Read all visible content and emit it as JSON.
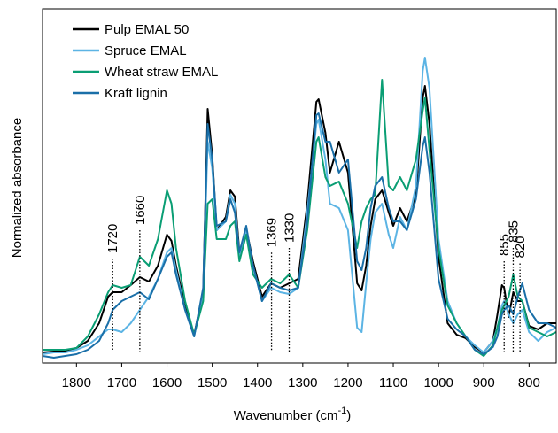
{
  "chart_data": {
    "type": "line",
    "x_label": "Wavenumber (cm",
    "x_label_sup": "-1",
    "x_label_end": ")",
    "y_label": "Normalized absorbance",
    "x": [
      1875,
      1850,
      1825,
      1800,
      1775,
      1750,
      1730,
      1720,
      1700,
      1680,
      1660,
      1640,
      1620,
      1600,
      1590,
      1580,
      1560,
      1540,
      1520,
      1510,
      1500,
      1490,
      1470,
      1460,
      1450,
      1440,
      1425,
      1410,
      1390,
      1370,
      1350,
      1330,
      1310,
      1290,
      1270,
      1265,
      1250,
      1240,
      1220,
      1200,
      1180,
      1170,
      1160,
      1150,
      1140,
      1125,
      1110,
      1100,
      1085,
      1070,
      1050,
      1035,
      1030,
      1020,
      1000,
      980,
      960,
      940,
      920,
      900,
      880,
      870,
      860,
      855,
      845,
      835,
      825,
      815,
      800,
      780,
      760,
      740
    ],
    "series": [
      {
        "name": "Pulp EMAL 50",
        "color": "#000000",
        "values": [
          12,
          13,
          14,
          17,
          25,
          45,
          75,
          80,
          80,
          88,
          97,
          92,
          110,
          145,
          138,
          110,
          65,
          32,
          80,
          287,
          235,
          150,
          165,
          195,
          188,
          125,
          152,
          115,
          75,
          90,
          85,
          90,
          95,
          180,
          295,
          298,
          260,
          215,
          250,
          215,
          90,
          82,
          110,
          155,
          185,
          195,
          170,
          155,
          175,
          160,
          190,
          300,
          313,
          270,
          120,
          45,
          32,
          28,
          18,
          12,
          25,
          55,
          88,
          85,
          52,
          80,
          70,
          70,
          42,
          38,
          45,
          45
        ]
      },
      {
        "name": "Spruce EMAL",
        "color": "#5cb4e4",
        "values": [
          10,
          12,
          12,
          15,
          20,
          30,
          38,
          38,
          35,
          45,
          60,
          75,
          95,
          125,
          130,
          105,
          60,
          30,
          80,
          250,
          220,
          150,
          160,
          190,
          180,
          120,
          150,
          110,
          70,
          85,
          80,
          78,
          85,
          170,
          270,
          275,
          230,
          180,
          175,
          150,
          40,
          35,
          90,
          140,
          170,
          180,
          145,
          130,
          165,
          150,
          200,
          330,
          345,
          310,
          140,
          70,
          45,
          30,
          20,
          12,
          25,
          40,
          65,
          70,
          55,
          45,
          55,
          60,
          35,
          25,
          35,
          40
        ]
      },
      {
        "name": "Wheat straw EMAL",
        "color": "#0a9e74",
        "values": [
          15,
          15,
          15,
          17,
          30,
          55,
          80,
          88,
          85,
          88,
          120,
          110,
          140,
          195,
          180,
          130,
          70,
          32,
          70,
          180,
          185,
          140,
          140,
          155,
          160,
          115,
          145,
          100,
          85,
          95,
          90,
          100,
          85,
          150,
          250,
          255,
          210,
          200,
          205,
          180,
          130,
          160,
          175,
          185,
          190,
          320,
          200,
          195,
          210,
          195,
          230,
          285,
          300,
          240,
          130,
          65,
          45,
          30,
          15,
          8,
          20,
          40,
          60,
          65,
          75,
          100,
          75,
          70,
          40,
          35,
          30,
          35
        ]
      },
      {
        "name": "Kraft lignin",
        "color": "#1a6fa8",
        "values": [
          8,
          6,
          8,
          10,
          15,
          25,
          45,
          60,
          70,
          75,
          80,
          72,
          95,
          120,
          125,
          100,
          60,
          30,
          85,
          270,
          230,
          155,
          160,
          185,
          170,
          125,
          155,
          110,
          70,
          90,
          85,
          82,
          85,
          160,
          280,
          282,
          250,
          250,
          215,
          230,
          115,
          105,
          130,
          175,
          200,
          210,
          175,
          160,
          160,
          150,
          185,
          245,
          255,
          215,
          95,
          50,
          38,
          30,
          15,
          10,
          18,
          30,
          55,
          60,
          65,
          55,
          75,
          90,
          60,
          45,
          45,
          40
        ]
      }
    ],
    "annotations": [
      1720,
      1660,
      1369,
      1330,
      855,
      835,
      820
    ],
    "xlim": [
      1875,
      740
    ],
    "ylim": [
      0,
      400
    ],
    "xticks": [
      1800,
      1700,
      1600,
      1500,
      1400,
      1300,
      1200,
      1100,
      1000,
      900,
      800
    ]
  }
}
